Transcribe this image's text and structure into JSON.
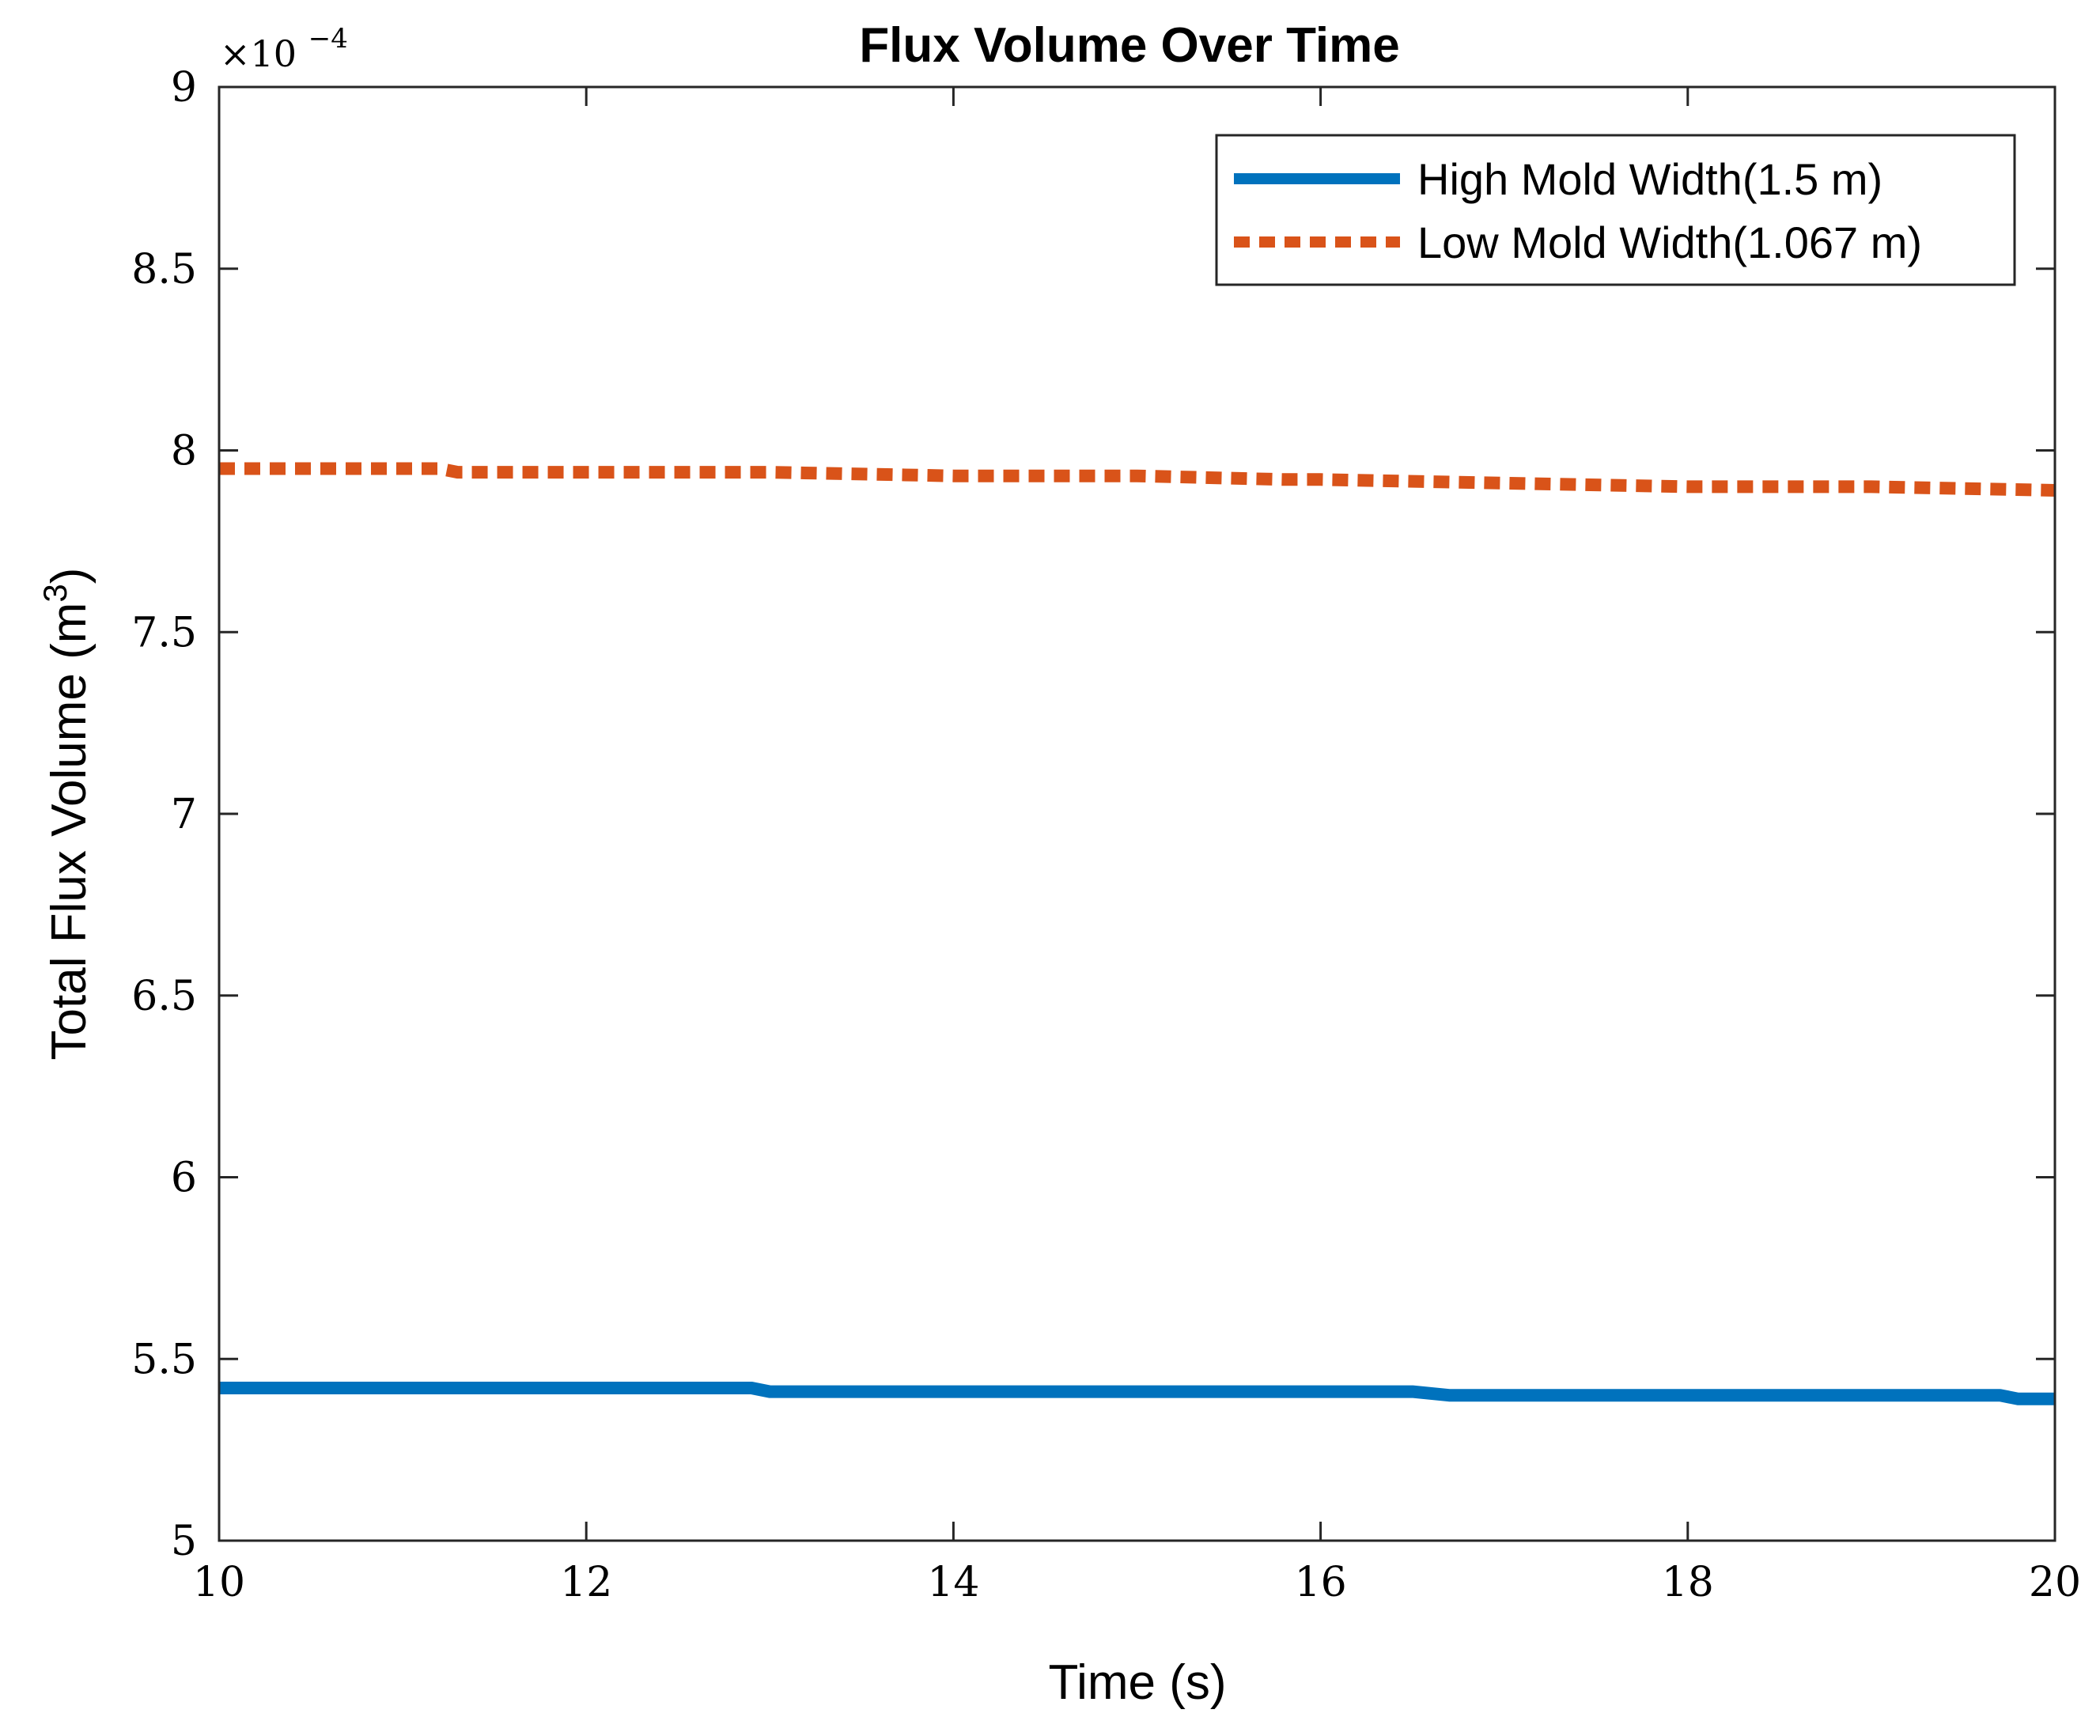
{
  "chart_data": {
    "type": "line",
    "title": "Flux Volume Over Time",
    "xlabel": "Time (s)",
    "ylabel": "Total Flux Volume (m",
    "ylabel_superscript": "3",
    "ylabel_suffix": ")",
    "y_exponent_base": "×10",
    "y_exponent_power": "−4",
    "xlim": [
      10,
      20
    ],
    "ylim": [
      5,
      9
    ],
    "y_scale_factor": 0.0001,
    "xticks": [
      10,
      12,
      14,
      16,
      18,
      20
    ],
    "xtick_labels": [
      "10",
      "12",
      "14",
      "16",
      "18",
      "20"
    ],
    "yticks": [
      5,
      5.5,
      6,
      6.5,
      7,
      7.5,
      8,
      8.5,
      9
    ],
    "ytick_labels": [
      "5",
      "5.5",
      "6",
      "6.5",
      "7",
      "7.5",
      "8",
      "8.5",
      "9"
    ],
    "grid": false,
    "legend_position": "top-right",
    "series": [
      {
        "name": "High Mold Width(1.5 m)",
        "color": "#0072BD",
        "style": "solid",
        "x": [
          10,
          12.9,
          13,
          16.5,
          16.7,
          19.7,
          19.8,
          20
        ],
        "y": [
          5.42,
          5.42,
          5.41,
          5.41,
          5.4,
          5.4,
          5.39,
          5.39
        ]
      },
      {
        "name": "Low Mold Width(1.067 m)",
        "color": "#D95319",
        "style": "dotted",
        "x": [
          10,
          11.2,
          11.3,
          13,
          14,
          15,
          15.8,
          16,
          17,
          18,
          19,
          20
        ],
        "y": [
          7.95,
          7.95,
          7.94,
          7.94,
          7.93,
          7.93,
          7.92,
          7.92,
          7.91,
          7.9,
          7.9,
          7.89
        ]
      }
    ]
  }
}
